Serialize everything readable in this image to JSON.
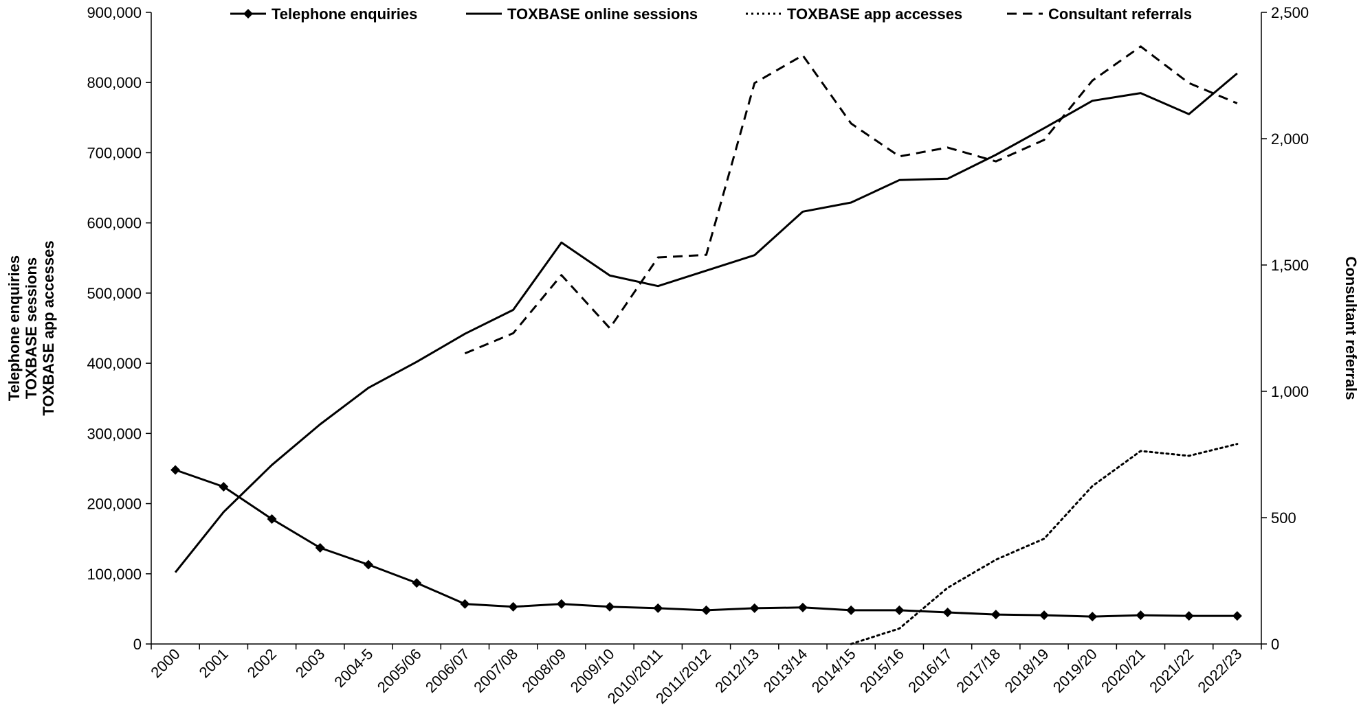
{
  "chart_data": {
    "type": "line",
    "categories": [
      "2000",
      "2001",
      "2002",
      "2003",
      "2004-5",
      "2005/06",
      "2006/07",
      "2007/08",
      "2008/09",
      "2009/10",
      "2010/2011",
      "2011/2012",
      "2012/13",
      "2013/14",
      "2014/15",
      "2015/16",
      "2016/17",
      "2017/18",
      "2018/19",
      "2019/20",
      "2020/21",
      "2021/22",
      "2022/23"
    ],
    "series": [
      {
        "name": "Telephone enquiries",
        "axis": "left",
        "style": "solid-diamond",
        "values": [
          248000,
          224000,
          178000,
          137000,
          113000,
          87000,
          57000,
          53000,
          57000,
          53000,
          51000,
          48000,
          51000,
          52000,
          48000,
          48000,
          45000,
          42000,
          41000,
          39000,
          41000,
          40000,
          40000
        ]
      },
      {
        "name": "TOXBASE online sessions",
        "axis": "left",
        "style": "solid",
        "values": [
          102000,
          188000,
          255000,
          313000,
          365000,
          402000,
          442000,
          476000,
          572000,
          525000,
          510000,
          532000,
          554000,
          616000,
          629000,
          661000,
          663000,
          697000,
          735000,
          774000,
          785000,
          755000,
          813000
        ]
      },
      {
        "name": "TOXBASE app accesses",
        "axis": "left",
        "style": "dotted",
        "values": [
          null,
          null,
          null,
          null,
          null,
          null,
          null,
          null,
          null,
          null,
          null,
          null,
          null,
          null,
          0,
          22000,
          80000,
          120000,
          150000,
          225000,
          275000,
          268000,
          285000
        ]
      },
      {
        "name": "Consultant referrals",
        "axis": "right",
        "style": "dashed",
        "values": [
          null,
          null,
          null,
          null,
          null,
          null,
          1150,
          1230,
          1460,
          1250,
          1530,
          1540,
          2220,
          2330,
          2060,
          1930,
          1965,
          1910,
          1995,
          2230,
          2365,
          2220,
          2140
        ]
      }
    ],
    "yaxis_left": {
      "label_lines": [
        "Telephone enquiries",
        "TOXBASE sessions",
        "TOXBASE app accesses"
      ],
      "range": [
        0,
        900000
      ],
      "ticks": [
        "0",
        "100,000",
        "200,000",
        "300,000",
        "400,000",
        "500,000",
        "600,000",
        "700,000",
        "800,000",
        "900,000"
      ]
    },
    "yaxis_right": {
      "label": "Consultant referrals",
      "range": [
        0,
        2500
      ],
      "ticks": [
        "0",
        "500",
        "1,000",
        "1,500",
        "2,000",
        "2,500"
      ]
    },
    "grid": false,
    "legend": "top"
  }
}
